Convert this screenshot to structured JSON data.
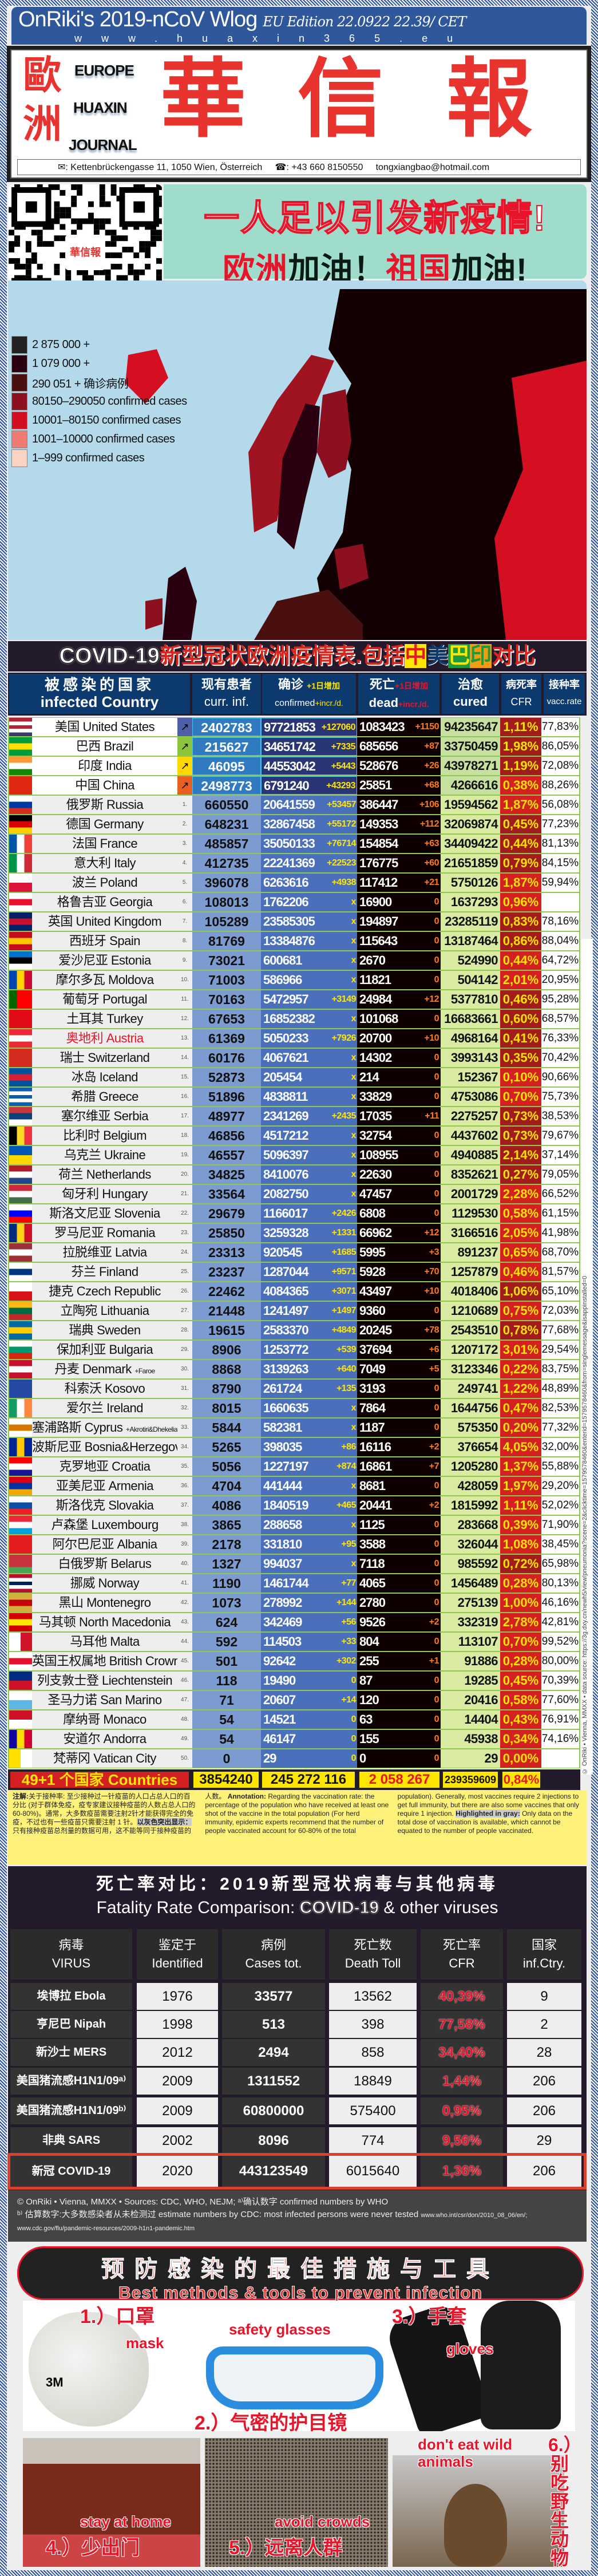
{
  "header": {
    "title": "OnRiki's 2019-nCoV Wlog",
    "edition": "EU Edition 22.0922 22.39/ CET",
    "url": "www.huaxin365.eu"
  },
  "logo": {
    "zh_left_1": "歐",
    "zh_left_2": "洲",
    "en_1": "EUROPE",
    "en_2": "HUAXIN",
    "en_3": "JOURNAL",
    "zh_main_1": "華",
    "zh_main_2": "信",
    "zh_main_3": "報",
    "address": "✉: Kettenbrückengasse 11, 1050 Wien, Österreich",
    "phone": "☎: +43 660 8150550",
    "email": "tongxiangbao@hotmail.com"
  },
  "qr": {
    "center_label": "華信報"
  },
  "slogan": {
    "line1": "一人足以引发新疫情!",
    "line2_red1": "欧洲",
    "line2_b1": "加油！",
    "line2_red2": "祖国",
    "line2_b2": "加油!"
  },
  "map_legend": [
    {
      "label": "2 875 000 +",
      "color": "#222222"
    },
    {
      "label": "1 079 000 +",
      "color": "#2a0010"
    },
    {
      "label": "290 051 + 确诊病例",
      "color": "#4a1010"
    },
    {
      "label": "80150–290050 confirmed cases",
      "color": "#8c1020"
    },
    {
      "label": "10001–80150 confirmed cases",
      "color": "#d01020"
    },
    {
      "label": "1001–10000 confirmed cases",
      "color": "#ef7a72"
    },
    {
      "label": "1–999 confirmed cases",
      "color": "#fbd3c2"
    }
  ],
  "table": {
    "title_en": "COVID-19",
    "title_zh": "新型冠状欧洲疫情表.包括",
    "title_cn": "中",
    "title_us": "美",
    "title_br": "巴",
    "title_in": "印",
    "title_end": "对比",
    "headers": {
      "country_zh": "被感染的国家",
      "country_en": "infected Country",
      "curr_zh": "现有患者",
      "curr_en": "curr. inf.",
      "conf_zh": "确诊",
      "conf_incr_zh": "+1日增加",
      "conf_en": "confirmed",
      "conf_incr_en": "+incr./d.",
      "dead_zh": "死亡",
      "dead_incr_zh": "+1日增加",
      "dead_en": "dead",
      "dead_incr_en": "+incr./d.",
      "cured_zh": "治愈",
      "cured_en": "cured",
      "cfr_zh": "病死率",
      "cfr_en": "CFR",
      "vacc_zh": "接种率",
      "vacc_en": "vacc.rate"
    },
    "colors": {
      "cfr_dark": "#a31c1c",
      "cfr_bright": "#d42020"
    },
    "top_rows": [
      [
        "美国",
        "United States",
        "",
        "↗",
        "2402783",
        "97721853",
        "+127060",
        "1083423",
        "+1150",
        "94235647",
        "1,11%",
        "77,83%",
        "d",
        "#5060a8",
        "h:#b22234,#fff,#b22234,#fff,#3c3b6e"
      ],
      [
        "巴西",
        "Brazil",
        "",
        "↗",
        "215627",
        "34651742",
        "+7335",
        "685656",
        "+87",
        "33750459",
        "1,98%",
        "86,05%",
        "d",
        "#8cc43c",
        "h:#009c3b,#ffdf00,#009c3b"
      ],
      [
        "印度",
        "India",
        "",
        "↗",
        "46095",
        "44553042",
        "+5443",
        "528676",
        "+26",
        "43978271",
        "1,19%",
        "72,08%",
        "d",
        "#ffd800",
        "h:#ff9933,#fff,#138808"
      ],
      [
        "中国",
        "China",
        "",
        "↗",
        "2498773",
        "6791240",
        "+43293",
        "25851",
        "+68",
        "4266616",
        "0,38%",
        "88,26%",
        "b",
        "#e86020",
        "h:#de2910,#de2910"
      ]
    ],
    "rows": [
      [
        "俄罗斯",
        "Russia",
        "",
        "1.",
        "660550",
        "20641559",
        "+53457",
        "386447",
        "+106",
        "19594562",
        "1,87%",
        "56,08%",
        "b",
        "h:#fff,#0039a6,#d52b1e"
      ],
      [
        "德国",
        "Germany",
        "",
        "2.",
        "648231",
        "32867458",
        "+55172",
        "149353",
        "+112",
        "32069874",
        "0,45%",
        "77,23%",
        "d",
        "h:#000,#dd0000,#ffce00"
      ],
      [
        "法国",
        "France",
        "",
        "3.",
        "485857",
        "35050133",
        "+76714",
        "154854",
        "+63",
        "34409422",
        "0,44%",
        "81,13%",
        "d",
        "v:#0055a4,#fff,#ef4135"
      ],
      [
        "意大利",
        "Italy",
        "",
        "4.",
        "412735",
        "22241369",
        "+22523",
        "176775",
        "+60",
        "21651859",
        "0,79%",
        "84,15%",
        "d",
        "v:#009246,#fff,#ce2b37"
      ],
      [
        "波兰",
        "Poland",
        "",
        "5.",
        "396078",
        "6263616",
        "+4938",
        "117412",
        "+21",
        "5750126",
        "1,87%",
        "59,94%",
        "b",
        "h:#fff,#dc143c"
      ],
      [
        "格鲁吉亚",
        "Georgia",
        "",
        "6.",
        "108013",
        "1762206",
        "x",
        "16900",
        "0",
        "1637293",
        "0,96%",
        "",
        "b",
        "h:#fff,#e8112d,#fff"
      ],
      [
        "英国",
        "United Kingdom",
        "",
        "7.",
        "105289",
        "23585305",
        "x",
        "194897",
        "0",
        "23285119",
        "0,83%",
        "78,16%",
        "d",
        "h:#012169,#c8102e,#012169"
      ],
      [
        "西班牙",
        "Spain",
        "",
        "8.",
        "81769",
        "13384876",
        "x",
        "115643",
        "0",
        "13187464",
        "0,86%",
        "88,04%",
        "d",
        "h:#c60b1e,#ffc400,#c60b1e"
      ],
      [
        "爱沙尼亚",
        "Estonia",
        "",
        "9.",
        "73021",
        "600681",
        "x",
        "2670",
        "0",
        "524990",
        "0,44%",
        "64,72%",
        "b",
        "h:#0072ce,#000,#fff"
      ],
      [
        "摩尔多瓦",
        "Moldova",
        "",
        "10.",
        "71003",
        "586966",
        "x",
        "11821",
        "0",
        "504142",
        "2,01%",
        "20,95%",
        "b",
        "v:#0046ae,#ffd200,#cc092f"
      ],
      [
        "葡萄牙",
        "Portugal",
        "",
        "11.",
        "70163",
        "5472957",
        "+3149",
        "24984",
        "+12",
        "5377810",
        "0,46%",
        "95,28%",
        "d",
        "v:#006600,#ff0000,#ff0000"
      ],
      [
        "土耳其",
        "Turkey",
        "",
        "12.",
        "67653",
        "16852382",
        "x",
        "101068",
        "0",
        "16683661",
        "0,60%",
        "68,57%",
        "d",
        "h:#e30a17,#e30a17"
      ],
      [
        "奥地利",
        "Austria",
        "red",
        "13.",
        "61369",
        "5050233",
        "+7926",
        "20700",
        "+10",
        "4968164",
        "0,41%",
        "76,33%",
        "d",
        "h:#ed2939,#fff,#ed2939"
      ],
      [
        "瑞士",
        "Switzerland",
        "",
        "14.",
        "60176",
        "4067621",
        "x",
        "14302",
        "0",
        "3993143",
        "0,35%",
        "70,42%",
        "d",
        "h:#d52b1e,#d52b1e"
      ],
      [
        "冰岛",
        "Iceland",
        "",
        "15.",
        "52873",
        "205454",
        "x",
        "214",
        "0",
        "152367",
        "0,10%",
        "90,66%",
        "b",
        "h:#02529c,#dc1e35,#02529c"
      ],
      [
        "希腊",
        "Greece",
        "",
        "16.",
        "51896",
        "4838811",
        "x",
        "33829",
        "0",
        "4753086",
        "0,70%",
        "75,73%",
        "b",
        "h:#0d5eaf,#fff,#0d5eaf,#fff,#0d5eaf"
      ],
      [
        "塞尔维亚",
        "Serbia",
        "",
        "17.",
        "48977",
        "2341269",
        "+2435",
        "17035",
        "+11",
        "2275257",
        "0,73%",
        "38,53%",
        "d",
        "h:#c6363c,#0c4076,#fff"
      ],
      [
        "比利时",
        "Belgium",
        "",
        "18.",
        "46856",
        "4517212",
        "x",
        "32754",
        "0",
        "4437602",
        "0,73%",
        "79,67%",
        "d",
        "v:#000,#fdda24,#ef3340"
      ],
      [
        "乌克兰",
        "Ukraine",
        "",
        "19.",
        "46557",
        "5096397",
        "x",
        "108955",
        "0",
        "4940885",
        "2,14%",
        "37,14%",
        "d",
        "h:#0057b7,#ffd700"
      ],
      [
        "荷兰",
        "Netherlands",
        "",
        "20.",
        "34825",
        "8410076",
        "x",
        "22630",
        "0",
        "8352621",
        "0,27%",
        "79,05%",
        "d",
        "h:#ae1c28,#fff,#21468b"
      ],
      [
        "匈牙利",
        "Hungary",
        "",
        "21.",
        "33564",
        "2082750",
        "x",
        "47457",
        "0",
        "2001729",
        "2,28%",
        "66,52%",
        "b",
        "h:#cd2a3e,#fff,#436f4d"
      ],
      [
        "斯洛文尼亚",
        "Slovenia",
        "",
        "22.",
        "29679",
        "1166017",
        "+2426",
        "6808",
        "0",
        "1129530",
        "0,58%",
        "61,15%",
        "b",
        "h:#fff,#0000ff,#ff0000"
      ],
      [
        "罗马尼亚",
        "Romania",
        "",
        "23.",
        "25850",
        "3259328",
        "+1331",
        "66962",
        "+12",
        "3166516",
        "2,05%",
        "41,98%",
        "b",
        "v:#002b7f,#fcd116,#ce1126"
      ],
      [
        "拉脱维亚",
        "Latvia",
        "",
        "24.",
        "23313",
        "920545",
        "+1685",
        "5995",
        "+3",
        "891237",
        "0,65%",
        "68,70%",
        "b",
        "h:#9e3039,#fff,#9e3039"
      ],
      [
        "芬兰",
        "Finland",
        "",
        "25.",
        "23237",
        "1287044",
        "+9571",
        "5928",
        "+70",
        "1257879",
        "0,46%",
        "81,57%",
        "b",
        "h:#fff,#003580,#fff"
      ],
      [
        "捷克",
        "Czech Republic",
        "",
        "26.",
        "22462",
        "4084365",
        "+3071",
        "43497",
        "+10",
        "4018406",
        "1,06%",
        "65,10%",
        "d",
        "h:#fff,#d7141a"
      ],
      [
        "立陶宛",
        "Lithuania",
        "",
        "27.",
        "21448",
        "1241497",
        "+1497",
        "9360",
        "0",
        "1210689",
        "0,75%",
        "72,03%",
        "b",
        "h:#fdb913,#006a44,#c1272d"
      ],
      [
        "瑞典",
        "Sweden",
        "",
        "28.",
        "19615",
        "2583370",
        "+4849",
        "20245",
        "+78",
        "2543510",
        "0,78%",
        "77,68%",
        "d",
        "h:#006aa7,#fecc00,#006aa7"
      ],
      [
        "保加利亚",
        "Bulgaria",
        "",
        "29.",
        "8906",
        "1253772",
        "+539",
        "37694",
        "+6",
        "1207172",
        "3,01%",
        "29,54%",
        "b",
        "h:#fff,#00966e,#d62612"
      ],
      [
        "丹麦",
        "Denmark",
        "+Faroe",
        "30.",
        "8868",
        "3139263",
        "+640",
        "7049",
        "+5",
        "3123346",
        "0,22%",
        "83,75%",
        "b",
        "h:#c8102e,#fff,#c8102e"
      ],
      [
        "科索沃",
        "Kosovo",
        "",
        "31.",
        "8790",
        "261724",
        "+135",
        "3193",
        "0",
        "249741",
        "1,22%",
        "48,89%",
        "b",
        "h:#244aa5,#244aa5"
      ],
      [
        "爱尔兰",
        "Ireland",
        "",
        "32.",
        "8015",
        "1660635",
        "x",
        "7864",
        "0",
        "1644756",
        "0,47%",
        "82,53%",
        "b",
        "v:#169b62,#fff,#ff883e"
      ],
      [
        "塞浦路斯",
        "Cyprus",
        "+Akrotiri&Dhekelia",
        "33.",
        "5844",
        "582381",
        "x",
        "1187",
        "0",
        "575350",
        "0,20%",
        "77,32%",
        "b",
        "h:#fff,#d57800,#fff"
      ],
      [
        "波斯尼亚",
        "Bosnia&Herzegovina",
        "",
        "34.",
        "5265",
        "398035",
        "+86",
        "16116",
        "+2",
        "376654",
        "4,05%",
        "32,00%",
        "b",
        "v:#002395,#fecb00,#002395"
      ],
      [
        "克罗地亚",
        "Croatia",
        "",
        "35.",
        "5056",
        "1227197",
        "+874",
        "16861",
        "+7",
        "1205280",
        "1,37%",
        "55,88%",
        "b",
        "h:#ff0000,#fff,#171796"
      ],
      [
        "亚美尼亚",
        "Armenia",
        "",
        "36.",
        "4704",
        "441444",
        "x",
        "8681",
        "0",
        "428059",
        "1,97%",
        "29,20%",
        "b",
        "h:#d90012,#0033a0,#f2a800"
      ],
      [
        "斯洛伐克",
        "Slovakia",
        "",
        "37.",
        "4086",
        "1840519",
        "+465",
        "20441",
        "+2",
        "1815992",
        "1,11%",
        "52,02%",
        "b",
        "h:#fff,#0b4ea2,#ee1c25"
      ],
      [
        "卢森堡",
        "Luxembourg",
        "",
        "38.",
        "3865",
        "288658",
        "x",
        "1125",
        "0",
        "283668",
        "0,39%",
        "71,90%",
        "b",
        "h:#ed2939,#fff,#00a1de"
      ],
      [
        "阿尔巴尼亚",
        "Albania",
        "",
        "39.",
        "2178",
        "331810",
        "+95",
        "3588",
        "0",
        "326044",
        "1,08%",
        "38,45%",
        "b",
        "h:#e41e20,#e41e20"
      ],
      [
        "白俄罗斯",
        "Belarus",
        "",
        "40.",
        "1327",
        "994037",
        "x",
        "7118",
        "0",
        "985592",
        "0,72%",
        "65,98%",
        "d",
        "h:#c8313e,#c8313e,#4aa657"
      ],
      [
        "挪威",
        "Norway",
        "",
        "41.",
        "1190",
        "1461744",
        "+77",
        "4065",
        "0",
        "1456489",
        "0,28%",
        "80,13%",
        "b",
        "h:#ba0c2f,#fff,#00205b,#fff,#ba0c2f"
      ],
      [
        "黑山",
        "Montenegro",
        "",
        "42.",
        "1073",
        "278992",
        "+144",
        "2780",
        "0",
        "275139",
        "1,00%",
        "46,16%",
        "b",
        "h:#d3ae3b,#c40308,#d3ae3b"
      ],
      [
        "马其顿",
        "North Macedonia",
        "",
        "43.",
        "624",
        "342469",
        "+56",
        "9526",
        "+2",
        "332319",
        "2,78%",
        "42,81%",
        "b",
        "h:#d20000,#ffe600,#d20000"
      ],
      [
        "马耳他",
        "Malta",
        "",
        "44.",
        "592",
        "114503",
        "+33",
        "804",
        "0",
        "113107",
        "0,70%",
        "99,52%",
        "b",
        "v:#fff,#cf142b"
      ],
      [
        "英国王权属地",
        "British Crown Dependencies",
        "",
        "45.",
        "501",
        "92642",
        "+302",
        "255",
        "+1",
        "91886",
        "0,28%",
        "80,00%",
        "b",
        "h:#fff,#e8112d,#fff"
      ],
      [
        "列支敦士登",
        "Liechtenstein",
        "",
        "46.",
        "118",
        "19490",
        "0",
        "87",
        "0",
        "19285",
        "0,45%",
        "70,39%",
        "b",
        "h:#002b7f,#ce1126"
      ],
      [
        "圣马力诺",
        "San Marino",
        "",
        "47.",
        "71",
        "20607",
        "+14",
        "120",
        "0",
        "20416",
        "0,58%",
        "77,60%",
        "b",
        "h:#fff,#5eb6e4"
      ],
      [
        "摩纳哥",
        "Monaco",
        "",
        "48.",
        "54",
        "14521",
        "0",
        "63",
        "0",
        "14404",
        "0,43%",
        "76,91%",
        "b",
        "h:#ce1126,#fff"
      ],
      [
        "安道尔",
        "Andorra",
        "",
        "49.",
        "54",
        "46147",
        "0",
        "155",
        "0",
        "45938",
        "0,34%",
        "74,16%",
        "b",
        "v:#10069f,#fedd00,#d50032"
      ],
      [
        "梵蒂冈",
        "Vatican City",
        "",
        "50.",
        "0",
        "29",
        "0",
        "0",
        "0",
        "29",
        "0,00%",
        "",
        "b",
        "v:#ffe000,#fff"
      ]
    ],
    "totals": {
      "label": "49+1 个国家 Countries",
      "curr": "3854240",
      "confirmed": "245 272 116",
      "dead": "2 058 267",
      "cured": "239359609",
      "cfr": "0,84%"
    },
    "notes": {
      "zh1": "注解:",
      "zh2": "关于接种率: 至少接种过一针疫苗的人口占总人口的百分比 (对于群体免疫，疫专家建议接种疫苗的人数占总人口的 60-80%)。通常，大多数疫苗需要注射2针才能获得完全的免疫，不过也有一些疫苗只需要注射 1 针。",
      "zh3": "以灰色突出显示：",
      "zh4": "只有接种疫苗总剂量的数据可用，这不能等同于接种疫苗的人数。",
      "en1": "Annotation:",
      "en2": "Regarding the vaccination rate: the percentage of the population who have received at least one shot of the vaccine in the total population (For herd immunity, epidemic experts recommend that the number of people vaccinated account for 60-80% of the total population). Generally, most vaccines require 2 injections to get full immunity, but there are also some vaccines that only require 1 injection.",
      "en3": "Highlighted in gray:",
      "en4": "Only data on the total dose of vaccination is available, which cannot be equated to the number of people vaccinated."
    },
    "side_text": "© OnRiki • Vienna, MMXX • data source: https://3g.dxy.cn/newh5/view/pneumonia?scene=2&clicktime=1579578460&enterid=1579578460&from=singlemessage&isappinstalled=0"
  },
  "fatality": {
    "title_zh": "死亡率对比：2019新型冠状病毒与其他病毒",
    "title_en_a": "Fatality Rate Comparison:",
    "title_en_b": "COVID-19",
    "title_en_c": "& other viruses",
    "headers": [
      [
        "病毒",
        "VIRUS"
      ],
      [
        "鉴定于",
        "Identified"
      ],
      [
        "病例",
        "Cases tot."
      ],
      [
        "死亡数",
        "Death Toll"
      ],
      [
        "死亡率",
        "CFR"
      ],
      [
        "国家",
        "inf.Ctry."
      ]
    ],
    "rows": [
      [
        "埃博拉 Ebola",
        "1976",
        "33577",
        "13562",
        "40,39%",
        "9"
      ],
      [
        "亨尼巴 Nipah",
        "1998",
        "513",
        "398",
        "77,58%",
        "2"
      ],
      [
        "新沙士 MERS",
        "2012",
        "2494",
        "858",
        "34,40%",
        "28"
      ],
      [
        "美国猪流感H1N1/09ᵃ⁾",
        "2009",
        "1311552",
        "18849",
        "1,44%",
        "206"
      ],
      [
        "美国猪流感H1N1/09ᵇ⁾",
        "2009",
        "60800000",
        "575400",
        "0,95%",
        "206"
      ],
      [
        "非典 SARS",
        "2002",
        "8096",
        "774",
        "9,56%",
        "29"
      ],
      [
        "新冠 COVID-19",
        "2020",
        "443123549",
        "6015640",
        "1,36%",
        "206"
      ]
    ],
    "footnote1": "© OnRiki • Vienna, MMXX • Sources: CDC, WHO, NEJM; ᵃ⁾确认数字 confirmed numbers by WHO",
    "footnote2": "ᵇ⁾ 估算数字:大多数感染者从未检测过  estimate numbers by CDC: most infected persons were never tested",
    "footnote3": "www.who.int/csr/don/2010_08_06/en/; www.cdc.gov/flu/pandemic-resources/2009-h1n1-pandemic.htm"
  },
  "prevention": {
    "title_zh": "预防感染的最佳措施与工具",
    "title_en": "Best methods & tools to prevent infection",
    "items": [
      {
        "zh": "1.）口罩",
        "en": "mask"
      },
      {
        "zh": "2.）气密的护目镜",
        "en": "safety glasses"
      },
      {
        "zh": "3.）手套",
        "en": "gloves"
      },
      {
        "zh": "4.）少出门",
        "en": "stay at home"
      },
      {
        "zh": "5.）远离人群",
        "en": "avoid crowds"
      },
      {
        "zh": "6.）别吃野生动物",
        "en": "don't eat wild animals"
      }
    ],
    "mask_brand": "3M"
  }
}
